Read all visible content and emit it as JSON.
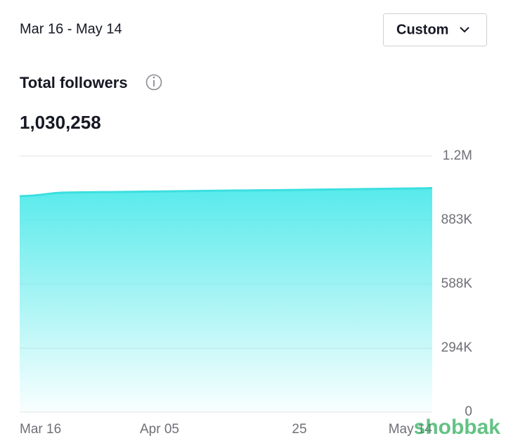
{
  "header": {
    "date_range": "Mar 16 - May 14",
    "button": "Custom"
  },
  "metric": {
    "label": "Total followers",
    "value": "1,030,258"
  },
  "watermark": "shobbak",
  "chart_data": {
    "type": "area",
    "categories": [
      "Mar 16",
      null,
      null,
      null,
      null,
      null,
      null,
      null,
      null,
      null,
      null,
      null,
      null,
      null,
      null,
      null,
      null,
      null,
      null,
      null,
      "Apr 05",
      null,
      null,
      null,
      null,
      null,
      null,
      null,
      null,
      null,
      null,
      null,
      null,
      null,
      null,
      null,
      null,
      null,
      null,
      null,
      "25",
      null,
      null,
      null,
      null,
      null,
      null,
      null,
      null,
      null,
      null,
      null,
      null,
      null,
      null,
      null,
      null,
      null,
      null,
      "May 14"
    ],
    "values": [
      992700,
      994000,
      996000,
      999000,
      1003000,
      1007000,
      1009000,
      1009500,
      1009900,
      1010300,
      1010700,
      1011100,
      1011500,
      1011800,
      1012200,
      1012600,
      1013000,
      1013400,
      1013800,
      1014200,
      1014600,
      1015000,
      1015400,
      1015800,
      1016200,
      1016600,
      1017000,
      1017400,
      1017800,
      1018200,
      1018500,
      1018800,
      1019100,
      1019400,
      1019700,
      1020000,
      1020300,
      1020600,
      1020900,
      1021300,
      1021700,
      1022100,
      1022500,
      1022900,
      1023300,
      1023700,
      1024100,
      1024500,
      1024900,
      1025300,
      1025700,
      1026100,
      1026500,
      1026900,
      1027300,
      1027700,
      1028100,
      1028500,
      1029000,
      1030258
    ],
    "color": "#3cdfe0",
    "ylim": [
      0,
      1177000
    ],
    "yticks": [
      0,
      {
        "value": 294000,
        "label": "294K"
      },
      {
        "value": 588000,
        "label": "588K"
      },
      {
        "value": 883000,
        "label": "883K"
      },
      {
        "value": 1177000,
        "label": "1.2M"
      }
    ],
    "grid": true
  }
}
